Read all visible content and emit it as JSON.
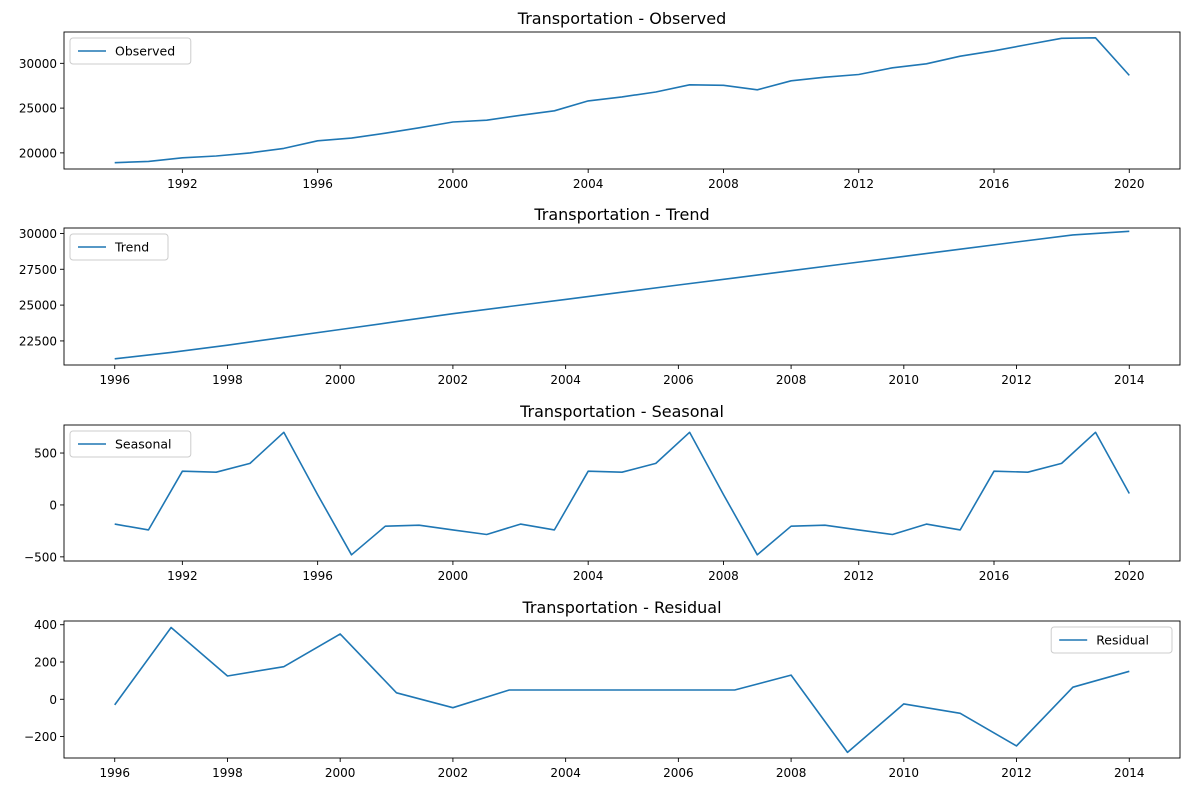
{
  "chart_data": [
    {
      "type": "line",
      "title": "Transportation  - Observed",
      "xlabel": "",
      "ylabel": "",
      "xlim": [
        1988.5,
        2021.5
      ],
      "ylim": [
        18200,
        33500
      ],
      "xticks": [
        1992,
        1996,
        2000,
        2004,
        2008,
        2012,
        2016,
        2020
      ],
      "yticks": [
        20000,
        25000,
        30000
      ],
      "legend_position": "upper-left",
      "grid": false,
      "series": [
        {
          "name": "Observed",
          "color": "#1f77b4",
          "x": [
            1990,
            1991,
            1992,
            1993,
            1994,
            1995,
            1996,
            1997,
            1998,
            1999,
            2000,
            2001,
            2002,
            2003,
            2004,
            2005,
            2006,
            2007,
            2008,
            2009,
            2010,
            2011,
            2012,
            2013,
            2014,
            2015,
            2016,
            2017,
            2018,
            2019,
            2020
          ],
          "values": [
            18900,
            19050,
            19450,
            19650,
            20000,
            20500,
            21350,
            21650,
            22200,
            22800,
            23450,
            23650,
            24200,
            24700,
            25800,
            26250,
            26800,
            27600,
            27550,
            27050,
            28050,
            28450,
            28750,
            29500,
            29950,
            30800,
            31400,
            32100,
            32800,
            32850,
            28650
          ]
        }
      ]
    },
    {
      "type": "line",
      "title": "Transportation  - Trend",
      "xlabel": "",
      "ylabel": "",
      "xlim": [
        1995.1,
        2014.9
      ],
      "ylim": [
        20820,
        30380
      ],
      "xticks": [
        1996,
        1998,
        2000,
        2002,
        2004,
        2006,
        2008,
        2010,
        2012,
        2014
      ],
      "yticks": [
        22500,
        25000,
        27500,
        30000
      ],
      "yticklabels": [
        "22500",
        "25000",
        "27500",
        "30000"
      ],
      "legend_position": "upper-left",
      "grid": false,
      "series": [
        {
          "name": "Trend",
          "color": "#1f77b4",
          "x": [
            1996,
            1997,
            1998,
            1999,
            2000,
            2001,
            2002,
            2003,
            2004,
            2005,
            2006,
            2007,
            2008,
            2009,
            2010,
            2011,
            2012,
            2013,
            2014
          ],
          "values": [
            21250,
            21700,
            22200,
            22750,
            23300,
            23850,
            24400,
            24900,
            25400,
            25900,
            26400,
            26900,
            27400,
            27900,
            28400,
            28900,
            29400,
            29900,
            30150
          ]
        }
      ]
    },
    {
      "type": "line",
      "title": "Transportation  - Seasonal",
      "xlabel": "",
      "ylabel": "",
      "xlim": [
        1988.5,
        2021.5
      ],
      "ylim": [
        -540,
        770
      ],
      "xticks": [
        1992,
        1996,
        2000,
        2004,
        2008,
        2012,
        2016,
        2020
      ],
      "yticks": [
        -500,
        0,
        500
      ],
      "yticklabels": [
        "−500",
        "0",
        "500"
      ],
      "legend_position": "upper-left",
      "grid": false,
      "series": [
        {
          "name": "Seasonal",
          "color": "#1f77b4",
          "x": [
            1990,
            1991,
            1992,
            1993,
            1994,
            1995,
            1996,
            1997,
            1998,
            1999,
            2000,
            2001,
            2002,
            2003,
            2004,
            2005,
            2006,
            2007,
            2008,
            2009,
            2010,
            2011,
            2012,
            2013,
            2014,
            2015,
            2016,
            2017,
            2018,
            2019,
            2020
          ],
          "values": [
            -185,
            -240,
            325,
            315,
            400,
            700,
            100,
            -480,
            -205,
            -195,
            -240,
            -285,
            -185,
            -240,
            325,
            315,
            400,
            700,
            100,
            -480,
            -205,
            -195,
            -240,
            -285,
            -185,
            -240,
            325,
            315,
            400,
            700,
            110
          ]
        }
      ]
    },
    {
      "type": "line",
      "title": "Transportation  - Residual",
      "xlabel": "",
      "ylabel": "",
      "xlim": [
        1995.1,
        2014.9
      ],
      "ylim": [
        -315,
        420
      ],
      "xticks": [
        1996,
        1998,
        2000,
        2002,
        2004,
        2006,
        2008,
        2010,
        2012,
        2014
      ],
      "yticks": [
        -200,
        0,
        200,
        400
      ],
      "yticklabels": [
        "−200",
        "0",
        "200",
        "400"
      ],
      "legend_position": "upper-right",
      "grid": false,
      "series": [
        {
          "name": "Residual",
          "color": "#1f77b4",
          "x": [
            1996,
            1997,
            1998,
            1999,
            2000,
            2001,
            2002,
            2003,
            2004,
            2005,
            2006,
            2007,
            2008,
            2009,
            2010,
            2011,
            2012,
            2013,
            2014
          ],
          "values": [
            -30,
            385,
            125,
            175,
            350,
            35,
            -45,
            50,
            50,
            50,
            50,
            50,
            130,
            -285,
            -25,
            -75,
            -250,
            65,
            150
          ]
        }
      ]
    }
  ]
}
